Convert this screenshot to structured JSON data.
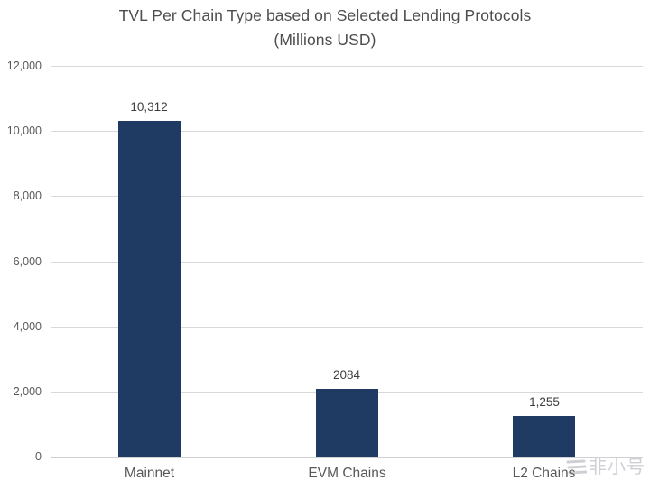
{
  "chart": {
    "title_line1": "TVL Per Chain Type based on Selected Lending Protocols",
    "title_line2": "(Millions USD)"
  },
  "chart_data": {
    "type": "bar",
    "title": "TVL Per Chain Type based on Selected Lending Protocols (Millions USD)",
    "categories": [
      "Mainnet",
      "EVM Chains",
      "L2 Chains"
    ],
    "values": [
      10312,
      2084,
      1255
    ],
    "value_labels": [
      "10,312",
      "2084",
      "1,255"
    ],
    "xlabel": "",
    "ylabel": "",
    "ylim": [
      0,
      12000
    ],
    "ytick_values": [
      0,
      2000,
      4000,
      6000,
      8000,
      10000,
      12000
    ],
    "ytick_labels": [
      "0",
      "2,000",
      "4,000",
      "6,000",
      "8,000",
      "10,000",
      "12,000"
    ],
    "grid": true,
    "legend": false,
    "bar_color": "#1f3a63"
  },
  "colors": {
    "bar": "#1f3a63",
    "gridline": "#d9d9d9",
    "axis_text": "#595959",
    "title_text": "#4d4d4d",
    "data_label_text": "#3d3d3d",
    "watermark": "#c9ccd1"
  },
  "watermark": {
    "text": "非小号"
  }
}
